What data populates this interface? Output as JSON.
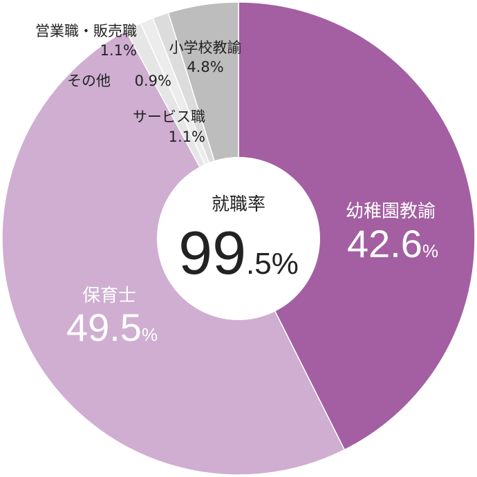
{
  "chart_data": {
    "type": "pie",
    "style": "donut",
    "center_title": "就職率",
    "center_value_main": "99",
    "center_value_sub": ".5%",
    "slices": [
      {
        "label": "幼稚園教諭",
        "value": 42.6,
        "value_main": "42.6",
        "value_unit": "%",
        "color": "#a35fa2",
        "label_color": "#ffffff"
      },
      {
        "label": "保育士",
        "value": 49.5,
        "value_main": "49.5",
        "value_unit": "%",
        "color": "#cfaed1",
        "label_color": "#ffffff"
      },
      {
        "label": "営業職・販売職",
        "value": 1.1,
        "value_text": "1.1%",
        "color": "#e6e6e6",
        "label_color": "#222222"
      },
      {
        "label": "その他",
        "value": 0.9,
        "value_text": "0.9%",
        "color": "#ececec",
        "label_color": "#222222"
      },
      {
        "label": "サービス職",
        "value": 1.1,
        "value_text": "1.1%",
        "color": "#dcdcdc",
        "label_color": "#222222"
      },
      {
        "label": "小学校教諭",
        "value": 4.8,
        "value_text": "4.8%",
        "color": "#bdbdbd",
        "label_color": "#222222"
      }
    ]
  }
}
